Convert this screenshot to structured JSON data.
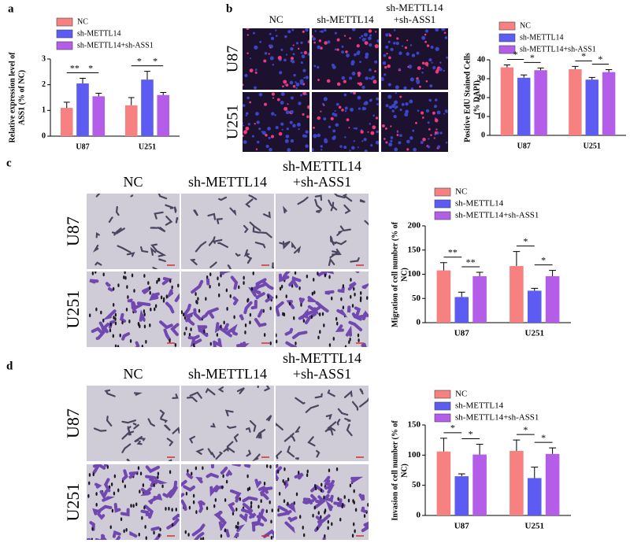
{
  "panel_labels": [
    "a",
    "b",
    "c",
    "d"
  ],
  "image_grids": [
    {
      "columns": [
        "NC",
        "sh-METTL14",
        "sh-METTL14 +sh-ASS1"
      ],
      "rows": [
        "U87",
        "U251"
      ]
    },
    {
      "columns": [
        "NC",
        "sh-METTL14",
        "sh-METTL14 +sh-ASS1"
      ],
      "rows": [
        "U87",
        "U251"
      ]
    },
    {
      "columns": [
        "NC",
        "sh-METTL14",
        "sh-METTL14 +sh-ASS1"
      ],
      "rows": [
        "U87",
        "U251"
      ]
    }
  ],
  "chart_data": [
    {
      "type": "bar",
      "y_label": "Relative expression level of ASS1 (% of NC)",
      "categories": [
        "U87",
        "U251"
      ],
      "ylim": [
        0,
        3
      ],
      "yticks": [
        0,
        1,
        2,
        3
      ],
      "series": [
        {
          "name": "NC",
          "color": "#f78181",
          "values": [
            1.1,
            1.2
          ],
          "errors": [
            0.22,
            0.3
          ]
        },
        {
          "name": "sh-METTL14",
          "color": "#5c5cf2",
          "values": [
            2.05,
            2.2
          ],
          "errors": [
            0.2,
            0.32
          ]
        },
        {
          "name": "sh-METTL14+sh-ASS1",
          "color": "#b35de8",
          "values": [
            1.55,
            1.6
          ],
          "errors": [
            0.12,
            0.1
          ]
        }
      ],
      "annotations": [
        "**",
        "*",
        "*",
        "*"
      ]
    },
    {
      "type": "bar",
      "y_label": "Positive EdU Stained Cells (% DAPI)",
      "categories": [
        "U87",
        "U251"
      ],
      "ylim": [
        0,
        40
      ],
      "yticks": [
        0,
        10,
        20,
        30,
        40
      ],
      "series": [
        {
          "name": "NC",
          "color": "#f78181",
          "values": [
            36,
            35
          ],
          "errors": [
            1.3,
            1.5
          ]
        },
        {
          "name": "sh-METTL14",
          "color": "#5c5cf2",
          "values": [
            30.5,
            29.5
          ],
          "errors": [
            1.5,
            1.2
          ]
        },
        {
          "name": "sh-METTL14+sh-ASS1",
          "color": "#b35de8",
          "values": [
            34.5,
            33.5
          ],
          "errors": [
            1.2,
            1.3
          ]
        }
      ],
      "annotations": [
        "*",
        "*",
        "*",
        "*"
      ]
    },
    {
      "type": "bar",
      "y_label": "Migration of cell number (% of NC)",
      "categories": [
        "U87",
        "U251"
      ],
      "ylim": [
        0,
        200
      ],
      "yticks": [
        0,
        50,
        100,
        150,
        200
      ],
      "series": [
        {
          "name": "NC",
          "color": "#f78181",
          "values": [
            108,
            117
          ],
          "errors": [
            16,
            30
          ]
        },
        {
          "name": "sh-METTL14",
          "color": "#5c5cf2",
          "values": [
            53,
            66
          ],
          "errors": [
            10,
            5
          ]
        },
        {
          "name": "sh-METTL14+sh-ASS1",
          "color": "#b35de8",
          "values": [
            96,
            96
          ],
          "errors": [
            8,
            12
          ]
        }
      ],
      "annotations": [
        "**",
        "**",
        "*",
        "*"
      ]
    },
    {
      "type": "bar",
      "y_label": "Invasion of cell number (% of NC)",
      "categories": [
        "U87",
        "U251"
      ],
      "ylim": [
        0,
        150
      ],
      "yticks": [
        0,
        50,
        100,
        150
      ],
      "series": [
        {
          "name": "NC",
          "color": "#f78181",
          "values": [
            106,
            107
          ],
          "errors": [
            22,
            18
          ]
        },
        {
          "name": "sh-METTL14",
          "color": "#5c5cf2",
          "values": [
            65,
            62
          ],
          "errors": [
            4,
            18
          ]
        },
        {
          "name": "sh-METTL14+sh-ASS1",
          "color": "#b35de8",
          "values": [
            101,
            102
          ],
          "errors": [
            17,
            10
          ]
        }
      ],
      "annotations": [
        "*",
        "*",
        "*",
        "*"
      ]
    }
  ]
}
